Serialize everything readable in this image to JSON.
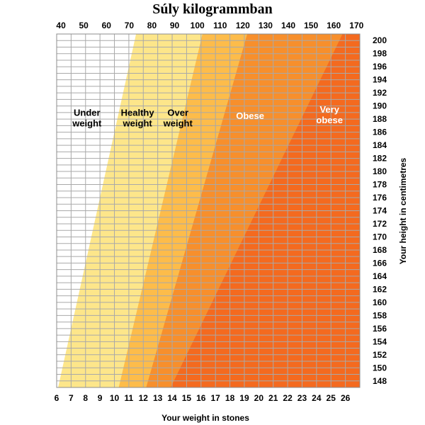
{
  "chart_data": {
    "type": "area",
    "title": "Súly kilogrammban",
    "xlabel": "Your weight in stones",
    "ylabel": "Your height in centimetres",
    "x_ticks": [
      6,
      7,
      8,
      9,
      10,
      11,
      12,
      13,
      14,
      15,
      16,
      17,
      18,
      19,
      20,
      21,
      22,
      23,
      24,
      25,
      26
    ],
    "top_ticks": [
      40,
      50,
      60,
      70,
      80,
      90,
      100,
      110,
      120,
      130,
      140,
      150,
      160,
      170
    ],
    "y_ticks": [
      148,
      150,
      152,
      154,
      156,
      158,
      160,
      162,
      164,
      166,
      168,
      170,
      172,
      174,
      176,
      178,
      180,
      182,
      184,
      186,
      188,
      190,
      192,
      194,
      196,
      198,
      200
    ],
    "xlim": [
      6,
      27
    ],
    "ylim": [
      147,
      201
    ],
    "grid": true,
    "bands": [
      {
        "label": "Under weight",
        "lines": [
          "Under",
          "weight"
        ],
        "color": "#ffffff",
        "text_color": "#000000",
        "lower_boundary": null,
        "label_at": [
          8.1,
          188.5
        ]
      },
      {
        "label": "Healthy weight",
        "lines": [
          "Healthy",
          "weight"
        ],
        "color": "#fde68a",
        "text_color": "#000000",
        "lower_boundary": [
          [
            6.1,
            147
          ],
          [
            11.5,
            201
          ]
        ],
        "label_at": [
          11.6,
          188.5
        ]
      },
      {
        "label": "Over weight",
        "lines": [
          "Over",
          "weight"
        ],
        "color": "#fdbc4a",
        "text_color": "#000000",
        "lower_boundary": [
          [
            10.3,
            147
          ],
          [
            16.1,
            201
          ]
        ],
        "label_at": [
          14.4,
          188.5
        ]
      },
      {
        "label": "Obese",
        "lines": [
          "Obese"
        ],
        "color": "#f78f2c",
        "text_color": "#ffffff",
        "lower_boundary": [
          [
            12.2,
            147
          ],
          [
            19.2,
            201
          ]
        ],
        "label_at": [
          19.4,
          188.0
        ]
      },
      {
        "label": "Very obese",
        "lines": [
          "Very",
          "obese"
        ],
        "color": "#f46a1f",
        "text_color": "#ffffff",
        "lower_boundary": [
          [
            13.9,
            147
          ],
          [
            25.8,
            201
          ]
        ],
        "label_at": [
          24.9,
          189.0
        ]
      }
    ]
  }
}
